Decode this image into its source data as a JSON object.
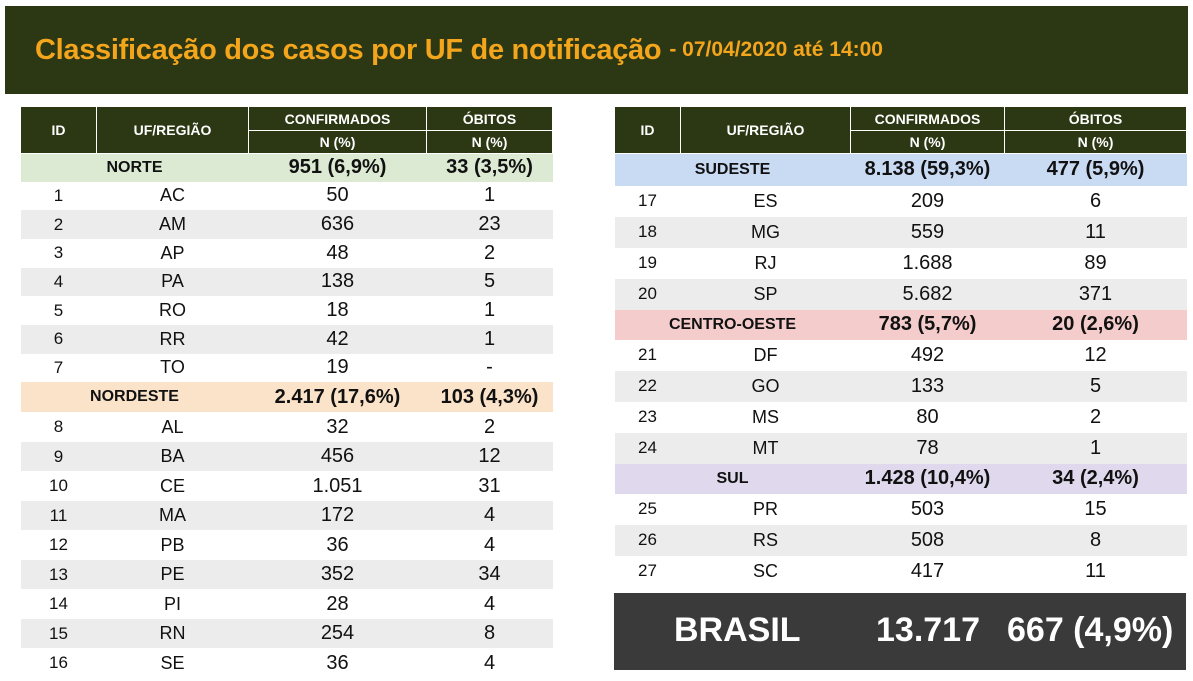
{
  "title": {
    "main": "Classificação dos casos por UF de notificação",
    "sub": "- 07/04/2020 até 14:00"
  },
  "headers": {
    "id": "ID",
    "uf": "UF/REGIÃO",
    "confirmados": "CONFIRMADOS",
    "obitos": "ÓBITOS",
    "n_pct": "N (%)"
  },
  "colors": {
    "header_bg": "#2c3714",
    "title_color": "#f3a51c",
    "norte": "#dcead3",
    "nordeste": "#fbe3c9",
    "sudeste": "#c9daf3",
    "centro_oeste": "#f5cccc",
    "sul": "#e0d8ec",
    "total_bg": "#3a3a3a"
  },
  "left": {
    "norte": {
      "name": "NORTE",
      "confirmados": "951 (6,9%)",
      "obitos": "33 (3,5%)"
    },
    "norte_rows": [
      {
        "id": "1",
        "uf": "AC",
        "conf": "50",
        "obit": "1"
      },
      {
        "id": "2",
        "uf": "AM",
        "conf": "636",
        "obit": "23"
      },
      {
        "id": "3",
        "uf": "AP",
        "conf": "48",
        "obit": "2"
      },
      {
        "id": "4",
        "uf": "PA",
        "conf": "138",
        "obit": "5"
      },
      {
        "id": "5",
        "uf": "RO",
        "conf": "18",
        "obit": "1"
      },
      {
        "id": "6",
        "uf": "RR",
        "conf": "42",
        "obit": "1"
      },
      {
        "id": "7",
        "uf": "TO",
        "conf": "19",
        "obit": "-"
      }
    ],
    "nordeste": {
      "name": "NORDESTE",
      "confirmados": "2.417 (17,6%)",
      "obitos": "103 (4,3%)"
    },
    "nordeste_rows": [
      {
        "id": "8",
        "uf": "AL",
        "conf": "32",
        "obit": "2"
      },
      {
        "id": "9",
        "uf": "BA",
        "conf": "456",
        "obit": "12"
      },
      {
        "id": "10",
        "uf": "CE",
        "conf": "1.051",
        "obit": "31"
      },
      {
        "id": "11",
        "uf": "MA",
        "conf": "172",
        "obit": "4"
      },
      {
        "id": "12",
        "uf": "PB",
        "conf": "36",
        "obit": "4"
      },
      {
        "id": "13",
        "uf": "PE",
        "conf": "352",
        "obit": "34"
      },
      {
        "id": "14",
        "uf": "PI",
        "conf": "28",
        "obit": "4"
      },
      {
        "id": "15",
        "uf": "RN",
        "conf": "254",
        "obit": "8"
      },
      {
        "id": "16",
        "uf": "SE",
        "conf": "36",
        "obit": "4"
      }
    ]
  },
  "right": {
    "sudeste": {
      "name": "SUDESTE",
      "confirmados": "8.138 (59,3%)",
      "obitos": "477 (5,9%)"
    },
    "sudeste_rows": [
      {
        "id": "17",
        "uf": "ES",
        "conf": "209",
        "obit": "6"
      },
      {
        "id": "18",
        "uf": "MG",
        "conf": "559",
        "obit": "11"
      },
      {
        "id": "19",
        "uf": "RJ",
        "conf": "1.688",
        "obit": "89"
      },
      {
        "id": "20",
        "uf": "SP",
        "conf": "5.682",
        "obit": "371"
      }
    ],
    "centro_oeste": {
      "name": "CENTRO-OESTE",
      "confirmados": "783 (5,7%)",
      "obitos": "20 (2,6%)"
    },
    "centro_oeste_rows": [
      {
        "id": "21",
        "uf": "DF",
        "conf": "492",
        "obit": "12"
      },
      {
        "id": "22",
        "uf": "GO",
        "conf": "133",
        "obit": "5"
      },
      {
        "id": "23",
        "uf": "MS",
        "conf": "80",
        "obit": "2"
      },
      {
        "id": "24",
        "uf": "MT",
        "conf": "78",
        "obit": "1"
      }
    ],
    "sul": {
      "name": "SUL",
      "confirmados": "1.428 (10,4%)",
      "obitos": "34 (2,4%)"
    },
    "sul_rows": [
      {
        "id": "25",
        "uf": "PR",
        "conf": "503",
        "obit": "15"
      },
      {
        "id": "26",
        "uf": "RS",
        "conf": "508",
        "obit": "8"
      },
      {
        "id": "27",
        "uf": "SC",
        "conf": "417",
        "obit": "11"
      }
    ]
  },
  "total": {
    "label": "BRASIL",
    "confirmados": "13.717",
    "obitos": "667 (4,9%)"
  }
}
